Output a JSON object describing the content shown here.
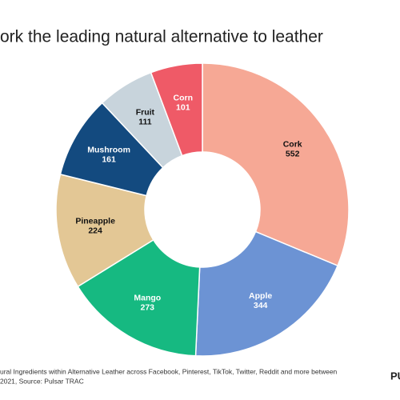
{
  "chart_data": {
    "type": "donut",
    "title": "ork the leading natural alternative to leather",
    "categories": [
      "Cork",
      "Apple",
      "Mango",
      "Pineapple",
      "Mushroom",
      "Fruit",
      "Corn"
    ],
    "values": [
      552,
      344,
      273,
      224,
      161,
      111,
      101
    ],
    "colors": [
      "#f6a895",
      "#6c93d4",
      "#16b981",
      "#e3c795",
      "#134a7f",
      "#c8d4dc",
      "#ef5a67"
    ],
    "footnote": [
      "ural Ingredients within Alternative Leather across Facebook, Pinterest, TikTok, Twitter, Reddit and more between",
      "2021, Source: Pulsar TRAC"
    ],
    "logo": "PU"
  }
}
